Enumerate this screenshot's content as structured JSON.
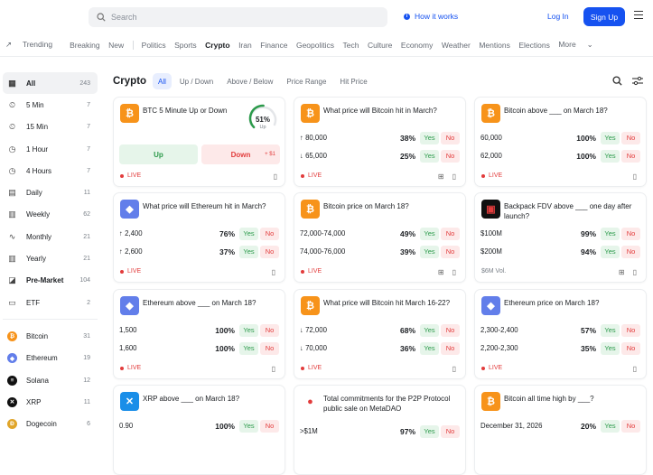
{
  "header": {
    "search_placeholder": "Search",
    "how_it_works": "How it works",
    "login": "Log In",
    "signup": "Sign Up"
  },
  "nav": {
    "trending": "Trending",
    "breaking": "Breaking",
    "new": "New",
    "items": [
      "Politics",
      "Sports",
      "Crypto",
      "Iran",
      "Finance",
      "Geopolitics",
      "Tech",
      "Culture",
      "Economy",
      "Weather",
      "Mentions",
      "Elections",
      "More"
    ]
  },
  "sidebar": {
    "items": [
      {
        "label": "All",
        "count": "243"
      },
      {
        "label": "5 Min",
        "count": "7"
      },
      {
        "label": "15 Min",
        "count": "7"
      },
      {
        "label": "1 Hour",
        "count": "7"
      },
      {
        "label": "4 Hours",
        "count": "7"
      },
      {
        "label": "Daily",
        "count": "11"
      },
      {
        "label": "Weekly",
        "count": "62"
      },
      {
        "label": "Monthly",
        "count": "21"
      },
      {
        "label": "Yearly",
        "count": "21"
      },
      {
        "label": "Pre-Market",
        "count": "104"
      },
      {
        "label": "ETF",
        "count": "2"
      }
    ],
    "coins": [
      {
        "label": "Bitcoin",
        "count": "31",
        "color": "#f7931a",
        "glyph": "₿"
      },
      {
        "label": "Ethereum",
        "count": "19",
        "color": "#627eea",
        "glyph": "◆"
      },
      {
        "label": "Solana",
        "count": "12",
        "color": "#111111",
        "glyph": "≡"
      },
      {
        "label": "XRP",
        "count": "11",
        "color": "#111111",
        "glyph": "✕"
      },
      {
        "label": "Dogecoin",
        "count": "6",
        "color": "#e0a52a",
        "glyph": "Ð"
      }
    ]
  },
  "main": {
    "title": "Crypto",
    "filters": [
      "All",
      "Up / Down",
      "Above / Below",
      "Price Range",
      "Hit Price"
    ]
  },
  "common": {
    "yes": "Yes",
    "no": "No",
    "live": "LIVE"
  },
  "cards": [
    {
      "title": "BTC 5 Minute Up or Down",
      "icon": "bitcoin",
      "color": "#f7931a",
      "gauge": "51%",
      "gauge_label": "Up",
      "gauge_value": 0.51,
      "up": "Up",
      "down": "Down",
      "down_extra": "+ $1"
    },
    {
      "title": "What price will Bitcoin hit in March?",
      "icon": "bitcoin",
      "color": "#f7931a",
      "rows": [
        {
          "label": "↑ 80,000",
          "pct": "38%"
        },
        {
          "label": "↓ 65,000",
          "pct": "25%"
        }
      ]
    },
    {
      "title": "Bitcoin above ___ on March 18?",
      "icon": "bitcoin",
      "color": "#f7931a",
      "rows": [
        {
          "label": "60,000",
          "pct": "100%"
        },
        {
          "label": "62,000",
          "pct": "100%"
        }
      ]
    },
    {
      "title": "What price will Ethereum hit in March?",
      "icon": "ethereum",
      "color": "#627eea",
      "rows": [
        {
          "label": "↑ 2,400",
          "pct": "76%"
        },
        {
          "label": "↑ 2,600",
          "pct": "37%"
        }
      ]
    },
    {
      "title": "Bitcoin price on March 18?",
      "icon": "bitcoin",
      "color": "#f7931a",
      "rows": [
        {
          "label": "72,000-74,000",
          "pct": "49%"
        },
        {
          "label": "74,000-76,000",
          "pct": "39%"
        }
      ]
    },
    {
      "title": "Backpack FDV above ___ one day after launch?",
      "icon": "backpack",
      "color": "#111111",
      "rows": [
        {
          "label": "$100M",
          "pct": "99%"
        },
        {
          "label": "$200M",
          "pct": "94%"
        }
      ],
      "vol": "$6M Vol."
    },
    {
      "title": "Ethereum above ___ on March 18?",
      "icon": "ethereum",
      "color": "#627eea",
      "rows": [
        {
          "label": "1,500",
          "pct": "100%"
        },
        {
          "label": "1,600",
          "pct": "100%"
        }
      ]
    },
    {
      "title": "What price will Bitcoin hit March 16-22?",
      "icon": "bitcoin",
      "color": "#f7931a",
      "rows": [
        {
          "label": "↓ 72,000",
          "pct": "68%"
        },
        {
          "label": "↓ 70,000",
          "pct": "36%"
        }
      ]
    },
    {
      "title": "Ethereum price on March 18?",
      "icon": "ethereum",
      "color": "#627eea",
      "rows": [
        {
          "label": "2,300-2,400",
          "pct": "57%"
        },
        {
          "label": "2,200-2,300",
          "pct": "35%"
        }
      ]
    },
    {
      "title": "XRP above ___ on March 18?",
      "icon": "xrp",
      "color": "#1a8ee8",
      "rows": [
        {
          "label": "0.90",
          "pct": "100%"
        }
      ]
    },
    {
      "title": "Total commitments for the P2P Protocol public sale on MetaDAO",
      "icon": "p2p",
      "color": "#e23c3c",
      "rows": [
        {
          "label": ">$1M",
          "pct": "97%"
        }
      ]
    },
    {
      "title": "Bitcoin all time high by ___?",
      "icon": "bitcoin",
      "color": "#f7931a",
      "rows": [
        {
          "label": "December 31, 2026",
          "pct": "20%"
        }
      ]
    }
  ]
}
